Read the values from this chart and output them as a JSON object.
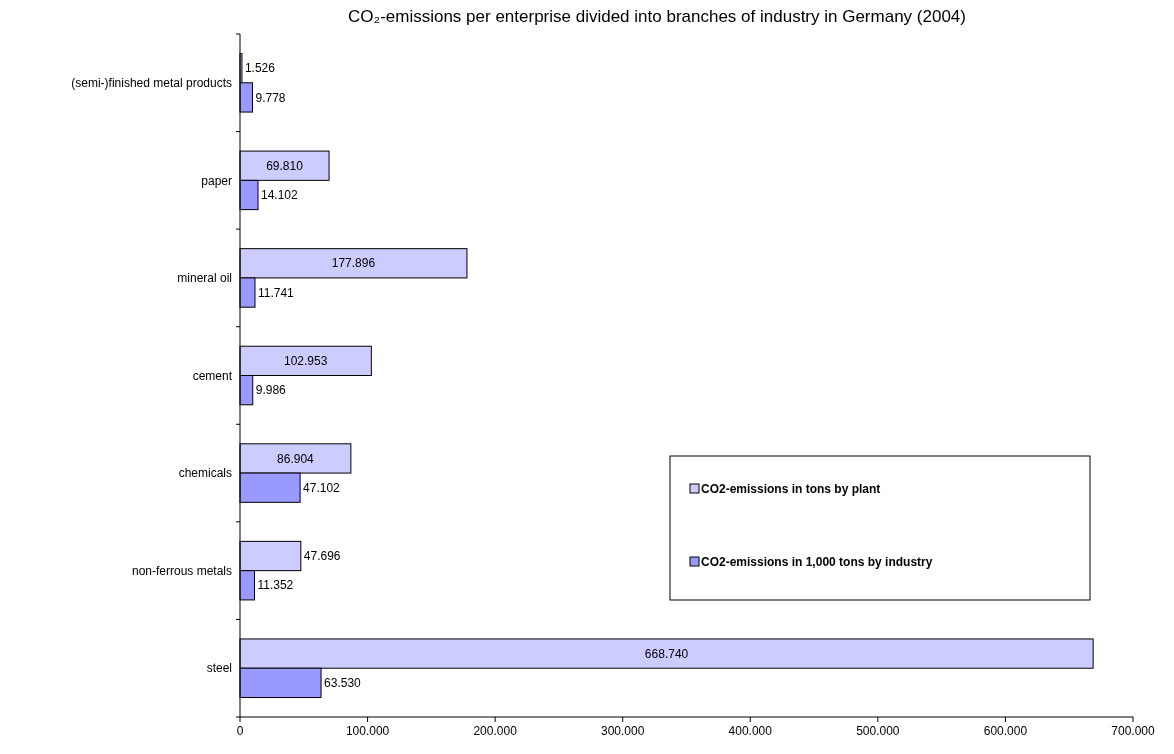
{
  "chart_data": {
    "type": "bar",
    "orientation": "horizontal",
    "title": "CO₂-emissions per enterprise divided into branches of industry in Germany (2004)",
    "categories": [
      "(semi-)finished metal products",
      "paper",
      "mineral oil",
      "cement",
      "chemicals",
      "non-ferrous metals",
      "steel"
    ],
    "series": [
      {
        "name": "CO2-emissions in tons by plant",
        "color": "#ccccff",
        "values": [
          1526,
          69810,
          177896,
          102953,
          86904,
          47696,
          668740
        ],
        "value_labels": [
          "1.526",
          "69.810",
          "177.896",
          "102.953",
          "86.904",
          "47.696",
          "668.740"
        ]
      },
      {
        "name": "CO2-emissions in 1,000 tons by industry",
        "color": "#9999ff",
        "values": [
          9778,
          14102,
          11741,
          9986,
          47102,
          11352,
          63530
        ],
        "value_labels": [
          "9.778",
          "14.102",
          "11.741",
          "9.986",
          "47.102",
          "11.352",
          "63.530"
        ]
      }
    ],
    "xlim": [
      0,
      700000
    ],
    "xticks": [
      0,
      {
        "value": 100000,
        "label": "100.000"
      },
      {
        "value": 200000,
        "label": "200.000"
      },
      {
        "value": 300000,
        "label": "300.000"
      },
      {
        "value": 400000,
        "label": "400.000"
      },
      {
        "value": 500000,
        "label": "500.000"
      },
      {
        "value": 600000,
        "label": "600.000"
      },
      {
        "value": 700000,
        "label": "700.000"
      }
    ],
    "legend": "right",
    "grid": false
  }
}
